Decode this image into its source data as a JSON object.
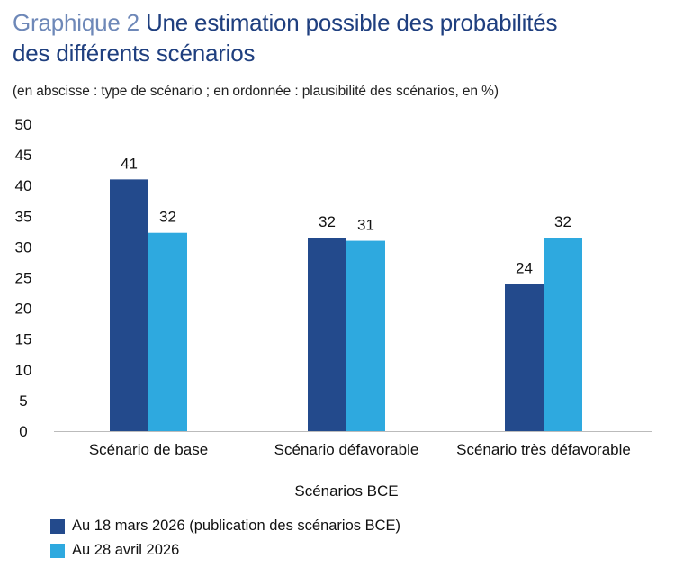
{
  "header": {
    "label": "Graphique 2",
    "title_line1": "Une estimation possible des probabilités",
    "title_line2": "des différents scénarios",
    "subtitle": "(en abscisse : type de scénario ; en ordonnée : plausibilité des scénarios, en %)"
  },
  "colors": {
    "series1": "#234a8c",
    "series2": "#2ea9df"
  },
  "chart_data": {
    "type": "bar",
    "categories": [
      "Scénario de base",
      "Scénario défavorable",
      "Scénario très défavorable"
    ],
    "series": [
      {
        "name": "Au 18 mars 2026 (publication des scénarios BCE)",
        "values": [
          41,
          32,
          24
        ]
      },
      {
        "name": "Au 28 avril 2026",
        "values": [
          32,
          31,
          32
        ]
      }
    ],
    "plotted_values": [
      [
        41,
        31.5,
        24
      ],
      [
        32.3,
        31,
        31.5
      ]
    ],
    "xlabel": "Scénarios BCE",
    "ylabel": "",
    "ylim": [
      0,
      50
    ],
    "yticks": [
      0,
      5,
      10,
      15,
      20,
      25,
      30,
      35,
      40,
      45,
      50
    ],
    "grid": false,
    "legend_position": "bottom-left"
  }
}
